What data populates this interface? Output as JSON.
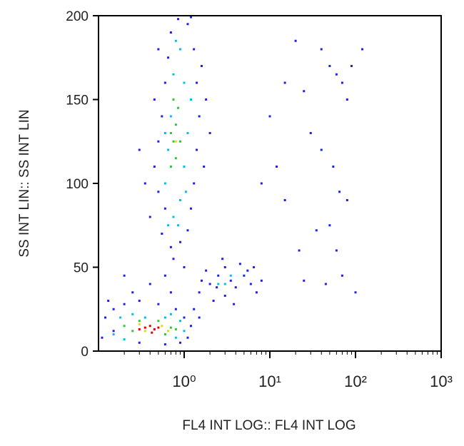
{
  "chart_data": {
    "type": "scatter",
    "xlabel": "FL4 INT LOG:: FL4 INT LOG",
    "ylabel": "SS INT LIN:: SS INT LIN",
    "xscale": "log",
    "xlim": [
      0.1,
      1000
    ],
    "xticks": [
      {
        "value": 1,
        "label": "10⁰"
      },
      {
        "value": 10,
        "label": "10¹"
      },
      {
        "value": 100,
        "label": "10²"
      },
      {
        "value": 1000,
        "label": "10³"
      }
    ],
    "xminorticks": [
      0.2,
      0.3,
      0.4,
      0.5,
      0.6,
      0.7,
      0.8,
      0.9,
      2,
      3,
      4,
      5,
      6,
      7,
      8,
      9,
      20,
      30,
      40,
      50,
      60,
      70,
      80,
      90,
      200,
      300,
      400,
      500,
      600,
      700,
      800,
      900
    ],
    "ylim": [
      0,
      200
    ],
    "yticks": [
      0,
      50,
      100,
      150,
      200
    ],
    "series": [
      {
        "color": "#1f1fe8",
        "x": [
          0.55,
          0.6,
          0.5,
          0.45,
          0.5,
          0.55,
          0.6,
          0.65,
          0.7,
          0.85,
          1.1,
          1.3,
          1.4,
          1.5,
          1.4,
          1.3,
          1.2,
          1.1,
          0.9,
          0.7,
          0.4,
          0.35,
          1.6,
          1.8,
          2,
          0.3,
          1.7,
          0.75,
          1.0,
          0.45,
          0.5,
          1.2,
          1.5,
          2,
          2.5,
          3,
          3.5,
          4,
          5,
          6,
          7,
          2.2,
          3,
          4.5,
          5.5,
          1.8,
          2.8,
          3.8,
          6.5,
          8,
          1.6,
          2.4,
          0.11,
          0.12,
          0.15,
          0.2,
          0.3,
          0.5,
          0.8,
          1.0,
          1.2,
          1.1,
          0.9,
          0.6,
          0.3,
          0.15,
          0.25,
          0.4,
          0.7,
          1.3,
          1.5,
          0.2,
          0.6,
          0.13,
          15,
          25,
          50,
          60,
          70,
          20,
          40,
          80,
          30,
          55,
          65,
          50,
          60,
          70,
          100,
          45,
          25,
          15,
          10,
          12,
          8,
          35,
          80,
          40,
          90,
          22,
          120
        ],
        "y": [
          70,
          85,
          95,
          110,
          125,
          140,
          160,
          175,
          190,
          198,
          195,
          180,
          160,
          140,
          120,
          100,
          85,
          72,
          65,
          62,
          80,
          100,
          170,
          150,
          130,
          120,
          110,
          55,
          50,
          150,
          180,
          200,
          35,
          40,
          45,
          50,
          42,
          38,
          45,
          40,
          35,
          30,
          33,
          52,
          48,
          48,
          55,
          28,
          50,
          42,
          42,
          38,
          8,
          20,
          25,
          28,
          30,
          28,
          25,
          20,
          15,
          8,
          5,
          4,
          5,
          12,
          35,
          40,
          35,
          25,
          20,
          45,
          45,
          30,
          160,
          155,
          170,
          165,
          160,
          185,
          180,
          150,
          130,
          110,
          95,
          75,
          60,
          45,
          35,
          40,
          42,
          90,
          140,
          110,
          100,
          72,
          90,
          120,
          170,
          60,
          180
        ]
      },
      {
        "color": "#00c0f0",
        "x": [
          0.6,
          0.65,
          0.7,
          0.75,
          0.8,
          0.9,
          1.0,
          1.1,
          1.0,
          0.9,
          0.75,
          0.65,
          1.2,
          0.6,
          0.85,
          1.05,
          0.15,
          0.18,
          0.25,
          0.7,
          0.9,
          1.0,
          0.8,
          0.2,
          0.35,
          0.6,
          3,
          3.5,
          2.5
        ],
        "y": [
          100,
          120,
          140,
          165,
          185,
          180,
          160,
          130,
          110,
          90,
          80,
          75,
          150,
          130,
          75,
          95,
          10,
          20,
          22,
          22,
          18,
          12,
          8,
          7,
          20,
          20,
          40,
          45,
          40
        ]
      },
      {
        "color": "#30c830",
        "x": [
          0.7,
          0.75,
          0.8,
          0.85,
          0.8,
          0.9,
          0.75,
          0.7,
          0.2,
          0.25,
          0.7,
          0.8,
          0.3,
          0.5,
          0.6
        ],
        "y": [
          110,
          125,
          135,
          145,
          115,
          125,
          150,
          130,
          15,
          12,
          14,
          13,
          18,
          18,
          10
        ]
      },
      {
        "color": "#e0e000",
        "x": [
          0.3,
          0.35,
          0.55,
          0.65,
          0.8
        ],
        "y": [
          16,
          12,
          15,
          12,
          125
        ]
      },
      {
        "color": "#e00000",
        "x": [
          0.35,
          0.4,
          0.45,
          0.5,
          0.42,
          0.3
        ],
        "y": [
          14,
          15,
          13,
          14,
          11,
          13
        ]
      }
    ]
  }
}
